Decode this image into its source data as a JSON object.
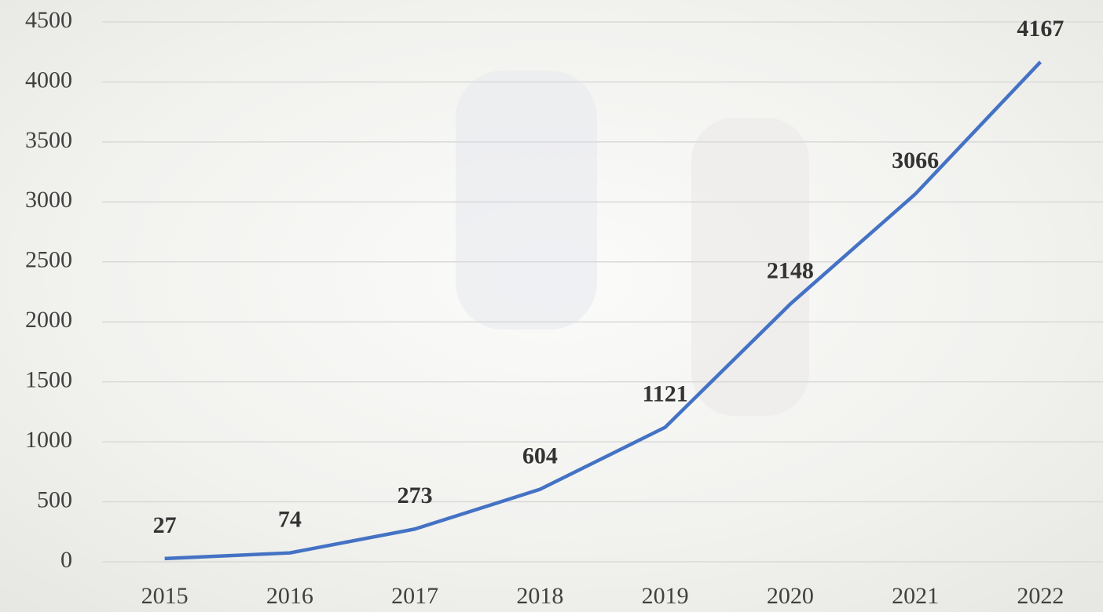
{
  "chart_data": {
    "type": "line",
    "categories": [
      "2015",
      "2016",
      "2017",
      "2018",
      "2019",
      "2020",
      "2021",
      "2022"
    ],
    "values": [
      27,
      74,
      273,
      604,
      1121,
      2148,
      3066,
      4167
    ],
    "color": "#4472c4",
    "ylim": [
      0,
      4500
    ],
    "yticks": [
      0,
      500,
      1000,
      1500,
      2000,
      2500,
      3000,
      3500,
      4000,
      4500
    ],
    "grid": true
  }
}
